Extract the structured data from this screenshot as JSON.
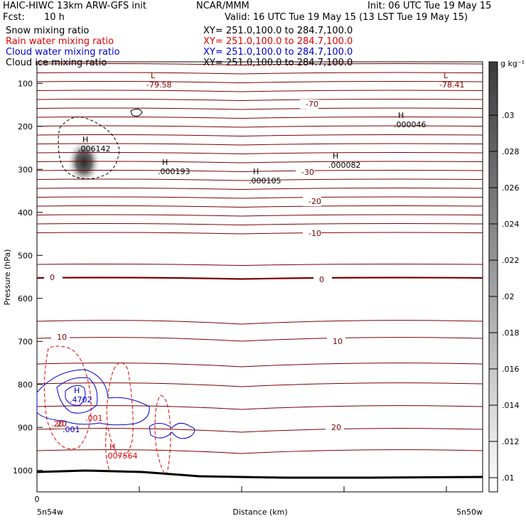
{
  "header": {
    "line1_left": "HAIC-HIWC 13km ARW-GFS init",
    "line1_mid": "NCAR/MMM",
    "line1_right": "Init: 06 UTC Tue 19 May 15",
    "fcst_label": "Fcst:",
    "fcst_value": "10 h",
    "valid": "Valid: 16 UTC Tue 19 May 15 (13 LST Tue 19 May 15)"
  },
  "legend": [
    {
      "label": "Snow mixing ratio",
      "xy": "XY= 251.0,100.0 to 284.7,100.0",
      "color": "#000000"
    },
    {
      "label": "Rain water mixing ratio",
      "xy": "XY= 251.0,100.0 to 284.7,100.0",
      "color": "#e00000"
    },
    {
      "label": "Cloud water mixing ratio",
      "xy": "XY= 251.0,100.0 to 284.7,100.0",
      "color": "#0000cc"
    },
    {
      "label": "Cloud ice mixing ratio",
      "xy": "XY= 251.0,100.0 to 284.7,100.0",
      "color": "#000000"
    }
  ],
  "chart_data": {
    "type": "cross-section contour",
    "xlabel": "Distance (km)",
    "ylabel": "Pressure (hPa)",
    "x_ticks": [
      "0"
    ],
    "x_endpoints": [
      "5n54w",
      "5n50w"
    ],
    "y_ticks": [
      100,
      200,
      300,
      400,
      500,
      600,
      700,
      800,
      900,
      1000
    ],
    "ylim": [
      1050,
      50
    ],
    "colorbar": {
      "unit": "g kg⁻¹",
      "ticks": [
        ".01",
        ".012",
        ".014",
        ".016",
        ".018",
        ".02",
        ".022",
        ".024",
        ".026",
        ".028",
        ".03"
      ]
    },
    "temperature_labels": [
      "-70",
      "-30",
      "-20",
      "-10",
      "0",
      "0",
      "10",
      "10",
      "20",
      "20"
    ],
    "extrema": [
      {
        "kind": "L",
        "value": "-79.58",
        "color": "#8b0000"
      },
      {
        "kind": "L",
        "value": "-78.41",
        "color": "#8b0000"
      },
      {
        "kind": "H",
        "value": ".000046",
        "color": "#000000"
      },
      {
        "kind": "H",
        "value": ".006142",
        "color": "#000000"
      },
      {
        "kind": "H",
        "value": ".000082",
        "color": "#000000"
      },
      {
        "kind": "H",
        "value": ".000193",
        "color": "#000000"
      },
      {
        "kind": "H",
        "value": ".000105",
        "color": "#000000"
      },
      {
        "kind": "H",
        "value": ".4702",
        "color": "#0000cc"
      },
      {
        "kind": "H",
        "value": ".007564",
        "color": "#e00000"
      }
    ],
    "cloud_water_labels": [
      ".001"
    ],
    "rain_labels": [
      ".001",
      ".20"
    ]
  },
  "colors": {
    "isotherm": "#7a0000",
    "rain": "#e00000",
    "cloud_water": "#0000cc",
    "terrain": "#000000"
  }
}
